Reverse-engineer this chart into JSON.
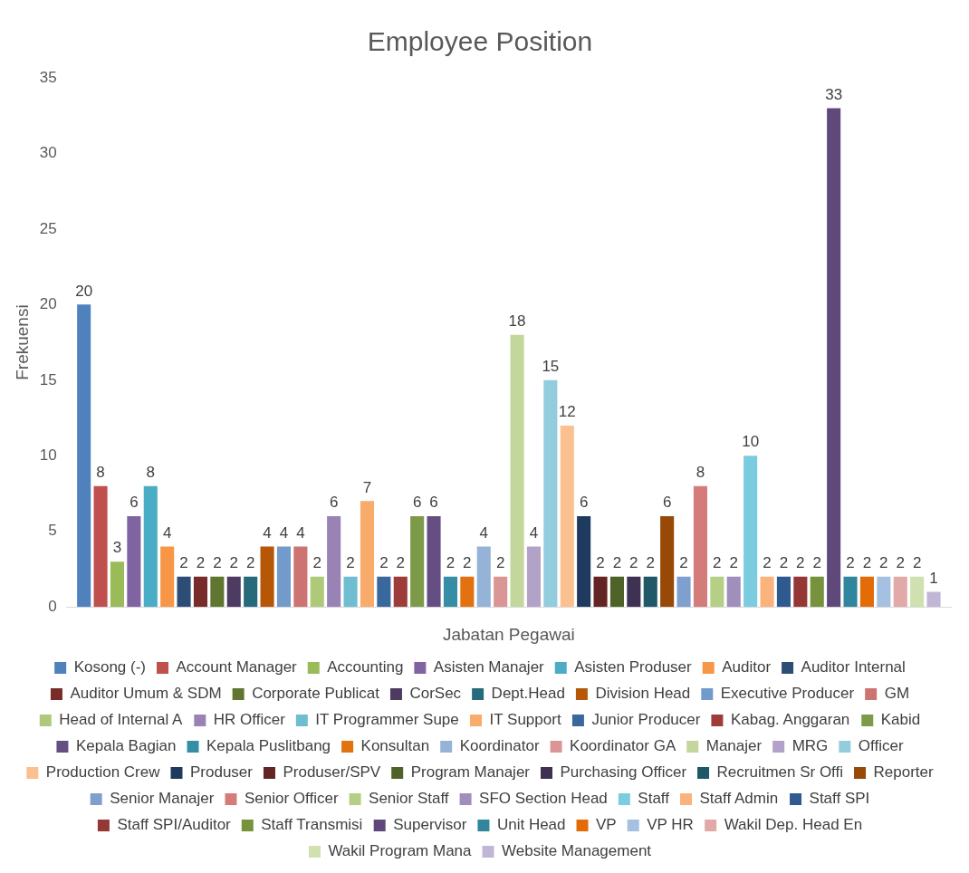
{
  "chart_data": {
    "type": "bar",
    "title": "Employee Position",
    "xlabel": "Jabatan Pegawai",
    "ylabel": "Frekuensi",
    "categories": [
      null
    ],
    "ylim": [
      0,
      35
    ],
    "yticks": [
      0,
      5,
      10,
      15,
      20,
      25,
      30,
      35
    ],
    "grid": false,
    "legend": "bottom",
    "tick_labels": "y",
    "data_labels": true,
    "series": [
      {
        "name": "Kosong (-)",
        "color": "#4f81bd",
        "values": [
          20
        ]
      },
      {
        "name": "Account Manager",
        "color": "#c0504d",
        "values": [
          8
        ]
      },
      {
        "name": "Accounting",
        "color": "#9bbb59",
        "values": [
          3
        ]
      },
      {
        "name": "Asisten Manajer",
        "color": "#8064a2",
        "values": [
          6
        ]
      },
      {
        "name": "Asisten Produser",
        "color": "#4bacc6",
        "values": [
          8
        ]
      },
      {
        "name": "Auditor",
        "color": "#f79646",
        "values": [
          4
        ]
      },
      {
        "name": "Auditor Internal",
        "color": "#2c4d75",
        "values": [
          2
        ]
      },
      {
        "name": "Auditor Umum & SDM",
        "color": "#772c2a",
        "values": [
          2
        ]
      },
      {
        "name": "Corporate Publicat",
        "color": "#5f7530",
        "values": [
          2
        ]
      },
      {
        "name": "CorSec",
        "color": "#4d3b62",
        "values": [
          2
        ]
      },
      {
        "name": "Dept.Head",
        "color": "#276a7c",
        "values": [
          2
        ]
      },
      {
        "name": "Division Head",
        "color": "#b65708",
        "values": [
          4
        ]
      },
      {
        "name": "Executive Producer",
        "color": "#729aca",
        "values": [
          4
        ]
      },
      {
        "name": "GM",
        "color": "#cd7371",
        "values": [
          4
        ]
      },
      {
        "name": "Head of Internal A",
        "color": "#afc97a",
        "values": [
          2
        ]
      },
      {
        "name": "HR Officer",
        "color": "#9983b5",
        "values": [
          6
        ]
      },
      {
        "name": "IT Programmer Supe",
        "color": "#6fbdd1",
        "values": [
          2
        ]
      },
      {
        "name": "IT Support",
        "color": "#f9ab6b",
        "values": [
          7
        ]
      },
      {
        "name": "Junior Producer",
        "color": "#3a679c",
        "values": [
          2
        ]
      },
      {
        "name": "Kabag. Anggaran",
        "color": "#9d3c39",
        "values": [
          2
        ]
      },
      {
        "name": "Kabid",
        "color": "#7d9a48",
        "values": [
          6
        ]
      },
      {
        "name": "Kepala Bagian",
        "color": "#654f82",
        "values": [
          6
        ]
      },
      {
        "name": "Kepala Puslitbang",
        "color": "#358ea6",
        "values": [
          2
        ]
      },
      {
        "name": "Konsultan",
        "color": "#e2720f",
        "values": [
          2
        ]
      },
      {
        "name": "Koordinator",
        "color": "#95b3d7",
        "values": [
          4
        ]
      },
      {
        "name": "Koordinator GA",
        "color": "#d99694",
        "values": [
          2
        ]
      },
      {
        "name": "Manajer",
        "color": "#c3d69b",
        "values": [
          18
        ]
      },
      {
        "name": "MRG",
        "color": "#b3a2c7",
        "values": [
          4
        ]
      },
      {
        "name": "Officer",
        "color": "#93cddd",
        "values": [
          15
        ]
      },
      {
        "name": "Production Crew",
        "color": "#fac08f",
        "values": [
          12
        ]
      },
      {
        "name": "Produser",
        "color": "#1f3a5f",
        "values": [
          6
        ]
      },
      {
        "name": "Produser/SPV",
        "color": "#632523",
        "values": [
          2
        ]
      },
      {
        "name": "Program Manajer",
        "color": "#4f6228",
        "values": [
          2
        ]
      },
      {
        "name": "Purchasing Officer",
        "color": "#3f3151",
        "values": [
          2
        ]
      },
      {
        "name": "Recruitmen Sr Offi",
        "color": "#205867",
        "values": [
          2
        ]
      },
      {
        "name": "Reporter",
        "color": "#984807",
        "values": [
          6
        ]
      },
      {
        "name": "Senior Manajer",
        "color": "#7f9fcf",
        "values": [
          2
        ]
      },
      {
        "name": "Senior Officer",
        "color": "#d47c7a",
        "values": [
          8
        ]
      },
      {
        "name": "Senior Staff",
        "color": "#b5cf86",
        "values": [
          2
        ]
      },
      {
        "name": "SFO Section Head",
        "color": "#a08fbd",
        "values": [
          2
        ]
      },
      {
        "name": "Staff",
        "color": "#7ccce0",
        "values": [
          10
        ]
      },
      {
        "name": "Staff Admin",
        "color": "#fab37c",
        "values": [
          2
        ]
      },
      {
        "name": "Staff SPI",
        "color": "#2f5a8f",
        "values": [
          2
        ]
      },
      {
        "name": "Staff SPI/Auditor",
        "color": "#953735",
        "values": [
          2
        ]
      },
      {
        "name": "Staff Transmisi",
        "color": "#76923c",
        "values": [
          2
        ]
      },
      {
        "name": "Supervisor",
        "color": "#5f497a",
        "values": [
          33
        ]
      },
      {
        "name": "Unit Head",
        "color": "#31859c",
        "values": [
          2
        ]
      },
      {
        "name": "VP",
        "color": "#e36c09",
        "values": [
          2
        ]
      },
      {
        "name": "VP HR",
        "color": "#a6c0e2",
        "values": [
          2
        ]
      },
      {
        "name": "Wakil Dep. Head En",
        "color": "#e1a9a7",
        "values": [
          2
        ]
      },
      {
        "name": "Wakil Program Mana",
        "color": "#d0e0b0",
        "values": [
          2
        ]
      },
      {
        "name": "Website Management",
        "color": "#c2b6d6",
        "values": [
          1
        ]
      }
    ]
  }
}
